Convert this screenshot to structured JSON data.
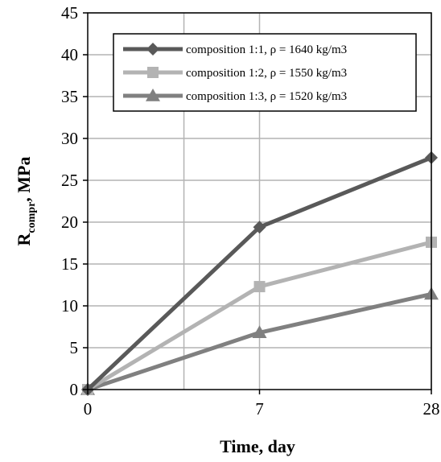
{
  "chart_data": {
    "type": "line",
    "x": [
      "0",
      "7",
      "28"
    ],
    "xlabel": "Time, day",
    "ylabel": {
      "main": "R",
      "sub": "compr",
      "rest": ", MPa"
    },
    "ylim": [
      0,
      45
    ],
    "yticks": [
      0,
      5,
      10,
      15,
      20,
      25,
      30,
      35,
      40,
      45
    ],
    "grid": true,
    "legend_position": "top-right",
    "series": [
      {
        "name": "composition 1:1, ρ = 1640 kg/m3",
        "values": [
          0,
          19.4,
          27.7
        ],
        "color": "#595959",
        "marker": "diamond"
      },
      {
        "name": "composition 1:2, ρ = 1550 kg/m3",
        "values": [
          0,
          12.3,
          17.6
        ],
        "color": "#b3b3b3",
        "marker": "square"
      },
      {
        "name": "composition 1:3, ρ = 1520 kg/m3",
        "values": [
          0,
          6.8,
          11.4
        ],
        "color": "#808080",
        "marker": "triangle"
      }
    ]
  }
}
